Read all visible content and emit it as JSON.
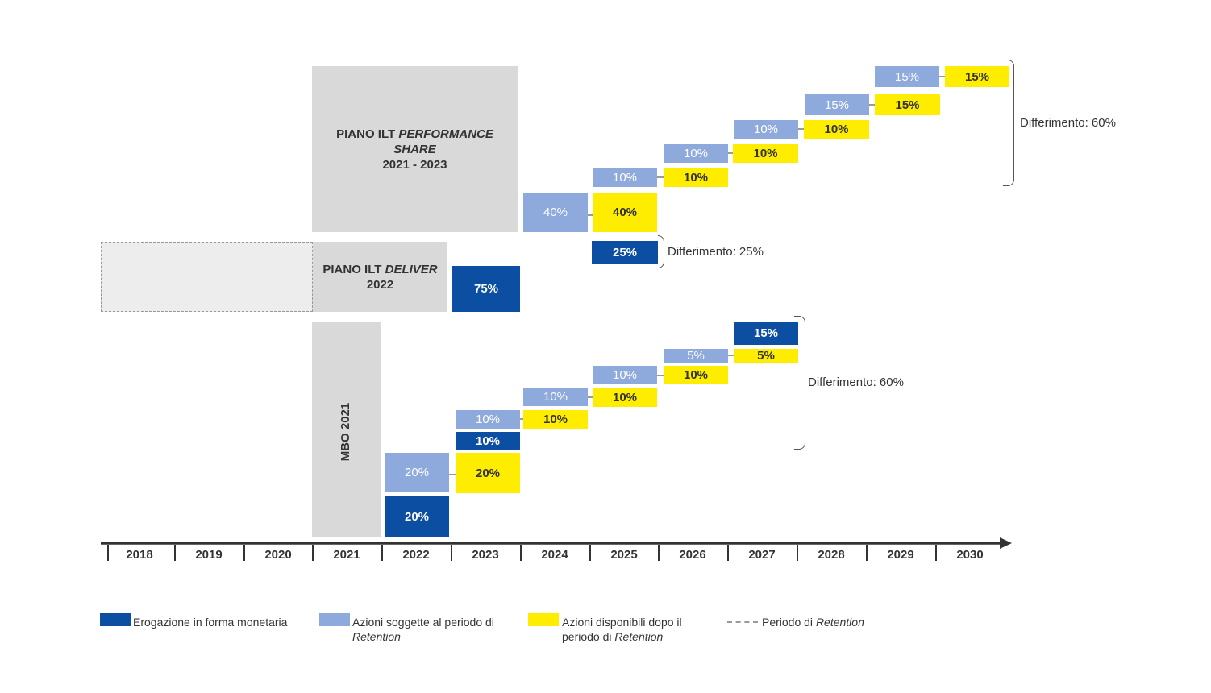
{
  "colors": {
    "cash": "#0b4ea2",
    "retention_shares": "#8ea9db",
    "available_shares": "#ffed00",
    "plan_bg": "#d9d9d9",
    "axis": "#333333"
  },
  "plans": {
    "performance_share": {
      "line1": "PIANO ILT ",
      "line1_italic": "PERFORMANCE",
      "line2_italic": "SHARE",
      "line3": "2021 - 2023"
    },
    "deliver": {
      "line1": "PIANO ILT ",
      "line1_italic": "DELIVER",
      "line2": "2022"
    },
    "mbo": {
      "label": "MBO 2021"
    }
  },
  "timeline": {
    "years": [
      "2018",
      "2019",
      "2020",
      "2021",
      "2022",
      "2023",
      "2024",
      "2025",
      "2026",
      "2027",
      "2028",
      "2029",
      "2030"
    ]
  },
  "blocks": {
    "ps_40_ret": "40%",
    "ps_40_avail": "40%",
    "ps_10a_ret": "10%",
    "ps_10a_avail": "10%",
    "ps_10b_ret": "10%",
    "ps_10b_avail": "10%",
    "ps_10c_ret": "10%",
    "ps_10c_avail": "10%",
    "ps_15a_ret": "15%",
    "ps_15a_avail": "15%",
    "ps_15b_ret": "15%",
    "ps_15b_avail": "15%",
    "del_75_cash": "75%",
    "del_25_cash": "25%",
    "mbo_20_cash": "20%",
    "mbo_20_ret": "20%",
    "mbo_20_avail": "20%",
    "mbo_10_cash": "10%",
    "mbo_10a_ret": "10%",
    "mbo_10a_avail": "10%",
    "mbo_10b_ret": "10%",
    "mbo_10b_avail": "10%",
    "mbo_10c_ret": "10%",
    "mbo_10c_avail": "10%",
    "mbo_5_ret": "5%",
    "mbo_5_avail": "5%",
    "mbo_15_cash": "15%"
  },
  "deferrals": {
    "performance": "Differimento: 60%",
    "deliver": "Differimento: 25%",
    "mbo": "Differimento: 60%"
  },
  "legend": {
    "cash": "Erogazione in forma monetaria",
    "retention_line1": "Azioni soggette al periodo di",
    "retention_line2_italic": "Retention",
    "available_line1": "Azioni disponibili dopo il",
    "available_line2": "periodo di ",
    "available_line2_italic": "Retention",
    "period": "Periodo di ",
    "period_italic": "Retention"
  }
}
